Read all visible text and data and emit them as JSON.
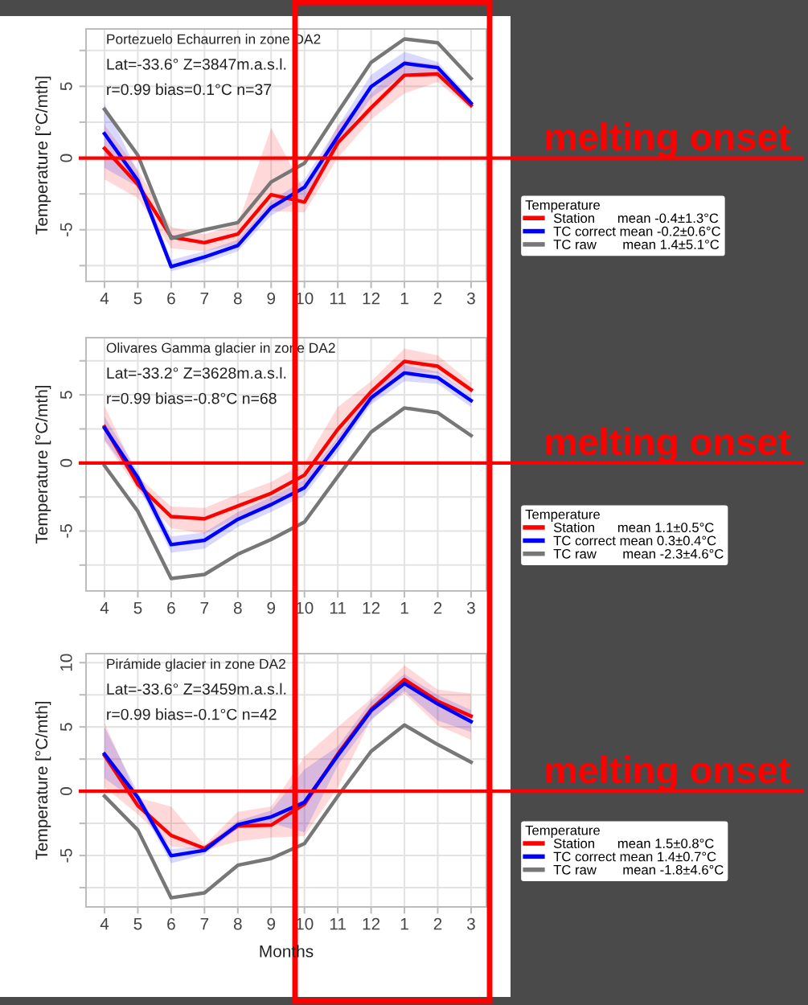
{
  "chart_data": [
    {
      "type": "line",
      "title": "Portezuelo Echaurren in zone DA2",
      "ylabel": "Temperature [°C/mth]",
      "annotations": [
        "Lat=-33.6° Z=3847m.a.s.l.",
        "r=0.99 bias=0.1°C n=37"
      ],
      "categories": [
        "4",
        "5",
        "6",
        "7",
        "8",
        "9",
        "10",
        "11",
        "12",
        "1",
        "2",
        "3"
      ],
      "ylim": [
        -8.6,
        9.0
      ],
      "yticks": [
        {
          "value": -7.5,
          "label": null
        },
        -5,
        {
          "value": -2.5,
          "label": null
        },
        0,
        {
          "value": 2.5,
          "label": null
        },
        5,
        {
          "value": 7.5,
          "label": null
        }
      ],
      "legend_title": "Temperature",
      "legend": "right",
      "grid": true,
      "series": [
        {
          "name": "Station      mean -0.4±1.3°C",
          "color": "#ff0000",
          "values": [
            0.67,
            -1.85,
            -5.5,
            -5.9,
            -5.3,
            -2.55,
            -3.07,
            1.05,
            3.5,
            5.77,
            5.86,
            3.67
          ],
          "lower": [
            -1.5,
            -2.8,
            -6.3,
            -6.5,
            -6.0,
            -3.7,
            -3.8,
            0.0,
            2.7,
            4.5,
            5.3,
            3.4
          ],
          "upper": [
            2.3,
            -0.8,
            -4.8,
            -5.3,
            -4.6,
            2.1,
            -2.3,
            2.3,
            4.5,
            6.8,
            6.5,
            3.9
          ]
        },
        {
          "name": "TC correct mean -0.2±0.6°C",
          "color": "#0000ff",
          "values": [
            1.7,
            -1.57,
            -7.57,
            -6.9,
            -6.1,
            -3.45,
            -2.04,
            1.5,
            4.98,
            6.6,
            6.3,
            3.82
          ],
          "lower": [
            -0.7,
            -2.0,
            -7.9,
            -7.3,
            -6.5,
            -4.0,
            -2.8,
            0.9,
            4.2,
            5.8,
            5.8,
            3.5
          ],
          "upper": [
            3.8,
            -1.0,
            -7.1,
            -6.5,
            -5.7,
            -3.0,
            -1.5,
            2.2,
            5.8,
            7.4,
            6.7,
            4.1
          ]
        },
        {
          "name": "TC raw       mean 1.4±5.1°C",
          "color": "#777777",
          "values": [
            3.4,
            0.2,
            -5.6,
            -5.0,
            -4.5,
            -1.67,
            -0.36,
            3.2,
            6.67,
            8.3,
            8.03,
            5.54
          ]
        }
      ],
      "ref_lines": [
        {
          "axis": "y",
          "value": 0,
          "label": "melting onset",
          "color": "#ff0000"
        }
      ]
    },
    {
      "type": "line",
      "title": "Olivares Gamma glacier in zone DA2",
      "ylabel": "Temperature [°C/mth]",
      "annotations": [
        "Lat=-33.2° Z=3628m.a.s.l.",
        "r=0.99 bias=-0.8°C n=68"
      ],
      "categories": [
        "4",
        "5",
        "6",
        "7",
        "8",
        "9",
        "10",
        "11",
        "12",
        "1",
        "2",
        "3"
      ],
      "ylim": [
        -9.4,
        9.2
      ],
      "yticks": [
        {
          "value": -7.5,
          "label": null
        },
        -5,
        {
          "value": -2.5,
          "label": null
        },
        0,
        {
          "value": 2.5,
          "label": null
        },
        5,
        {
          "value": 7.5,
          "label": null
        }
      ],
      "legend_title": "Temperature",
      "legend": "right",
      "grid": true,
      "series": [
        {
          "name": "Station      mean 1.1±0.5°C",
          "color": "#ff0000",
          "values": [
            2.66,
            -1.58,
            -3.94,
            -4.1,
            -3.16,
            -2.23,
            -0.89,
            2.47,
            5.23,
            7.46,
            7.1,
            5.37
          ],
          "lower": [
            1.6,
            -2.0,
            -4.8,
            -5.2,
            -4.0,
            -3.0,
            -1.6,
            1.7,
            4.4,
            6.7,
            6.6,
            5.0
          ],
          "upper": [
            4.2,
            -1.0,
            -3.2,
            -3.3,
            -2.3,
            -1.4,
            0.0,
            4.1,
            6.0,
            8.4,
            7.9,
            5.9
          ]
        },
        {
          "name": "TC correct mean 0.3±0.4°C",
          "color": "#0000ff",
          "values": [
            2.56,
            -1.08,
            -6.0,
            -5.68,
            -4.14,
            -3.06,
            -1.81,
            1.38,
            4.79,
            6.61,
            6.27,
            4.58
          ],
          "lower": [
            1.7,
            -1.6,
            -6.6,
            -6.3,
            -4.7,
            -3.6,
            -2.4,
            0.8,
            4.3,
            6.0,
            5.8,
            4.1
          ],
          "upper": [
            3.4,
            -0.6,
            -5.4,
            -5.1,
            -3.6,
            -2.5,
            -1.2,
            1.9,
            5.3,
            7.2,
            6.7,
            5.0
          ]
        },
        {
          "name": "TC raw       mean -2.3±4.6°C",
          "color": "#777777",
          "values": [
            -0.2,
            -3.55,
            -8.48,
            -8.19,
            -6.7,
            -5.62,
            -4.34,
            -0.99,
            2.27,
            4.04,
            3.69,
            2.01
          ]
        }
      ],
      "ref_lines": [
        {
          "axis": "y",
          "value": 0,
          "label": "melting onset",
          "color": "#ff0000"
        }
      ]
    },
    {
      "type": "line",
      "title": "Pirámide glacier in zone DA2",
      "ylabel": "Temperature [°C/mth]",
      "xlabel": "Months",
      "annotations": [
        "Lat=-33.6° Z=3459m.a.s.l.",
        "r=0.99 bias=-0.1°C n=42"
      ],
      "categories": [
        "4",
        "5",
        "6",
        "7",
        "8",
        "9",
        "10",
        "11",
        "12",
        "1",
        "2",
        "3"
      ],
      "ylim": [
        -9.0,
        10.7
      ],
      "yticks": [
        {
          "value": -7.5,
          "label": null
        },
        -5,
        {
          "value": -2.5,
          "label": null
        },
        0,
        {
          "value": 2.5,
          "label": null
        },
        5,
        {
          "value": 7.5,
          "label": null
        },
        10
      ],
      "legend_title": "Temperature",
      "legend": "right",
      "grid": true,
      "series": [
        {
          "name": "Station      mean 1.5±0.8°C",
          "color": "#ff0000",
          "values": [
            2.78,
            -1.12,
            -3.44,
            -4.45,
            -2.7,
            -2.64,
            -1.01,
            2.89,
            6.37,
            8.69,
            7.0,
            5.84
          ],
          "lower": [
            0.3,
            -1.8,
            -4.3,
            -4.6,
            -3.9,
            -3.6,
            -3.5,
            0.3,
            5.6,
            7.6,
            5.1,
            4.0
          ],
          "upper": [
            5.3,
            -0.5,
            -1.2,
            -4.2,
            -1.6,
            -1.2,
            2.7,
            5.0,
            7.2,
            9.8,
            7.9,
            7.6
          ]
        },
        {
          "name": "TC correct mean 1.4±0.7°C",
          "color": "#0000ff",
          "values": [
            2.89,
            -0.49,
            -5.02,
            -4.6,
            -2.6,
            -2.0,
            -0.86,
            2.78,
            6.27,
            8.38,
            6.79,
            5.42
          ],
          "lower": [
            1.0,
            -0.9,
            -5.6,
            -4.9,
            -2.9,
            -2.5,
            -3.2,
            2.0,
            5.5,
            7.8,
            5.5,
            4.6
          ],
          "upper": [
            5.0,
            -0.1,
            -4.5,
            -4.3,
            -2.3,
            -1.5,
            1.7,
            3.5,
            7.0,
            9.1,
            7.5,
            6.3
          ]
        },
        {
          "name": "TC raw       mean -1.8±4.6°C",
          "color": "#777777",
          "values": [
            -0.38,
            -3.02,
            -8.29,
            -7.91,
            -5.76,
            -5.23,
            -4.07,
            -0.38,
            3.1,
            5.15,
            3.63,
            2.26
          ]
        }
      ],
      "ref_lines": [
        {
          "axis": "y",
          "value": 0,
          "label": "melting onset",
          "color": "#ff0000"
        }
      ]
    }
  ]
}
